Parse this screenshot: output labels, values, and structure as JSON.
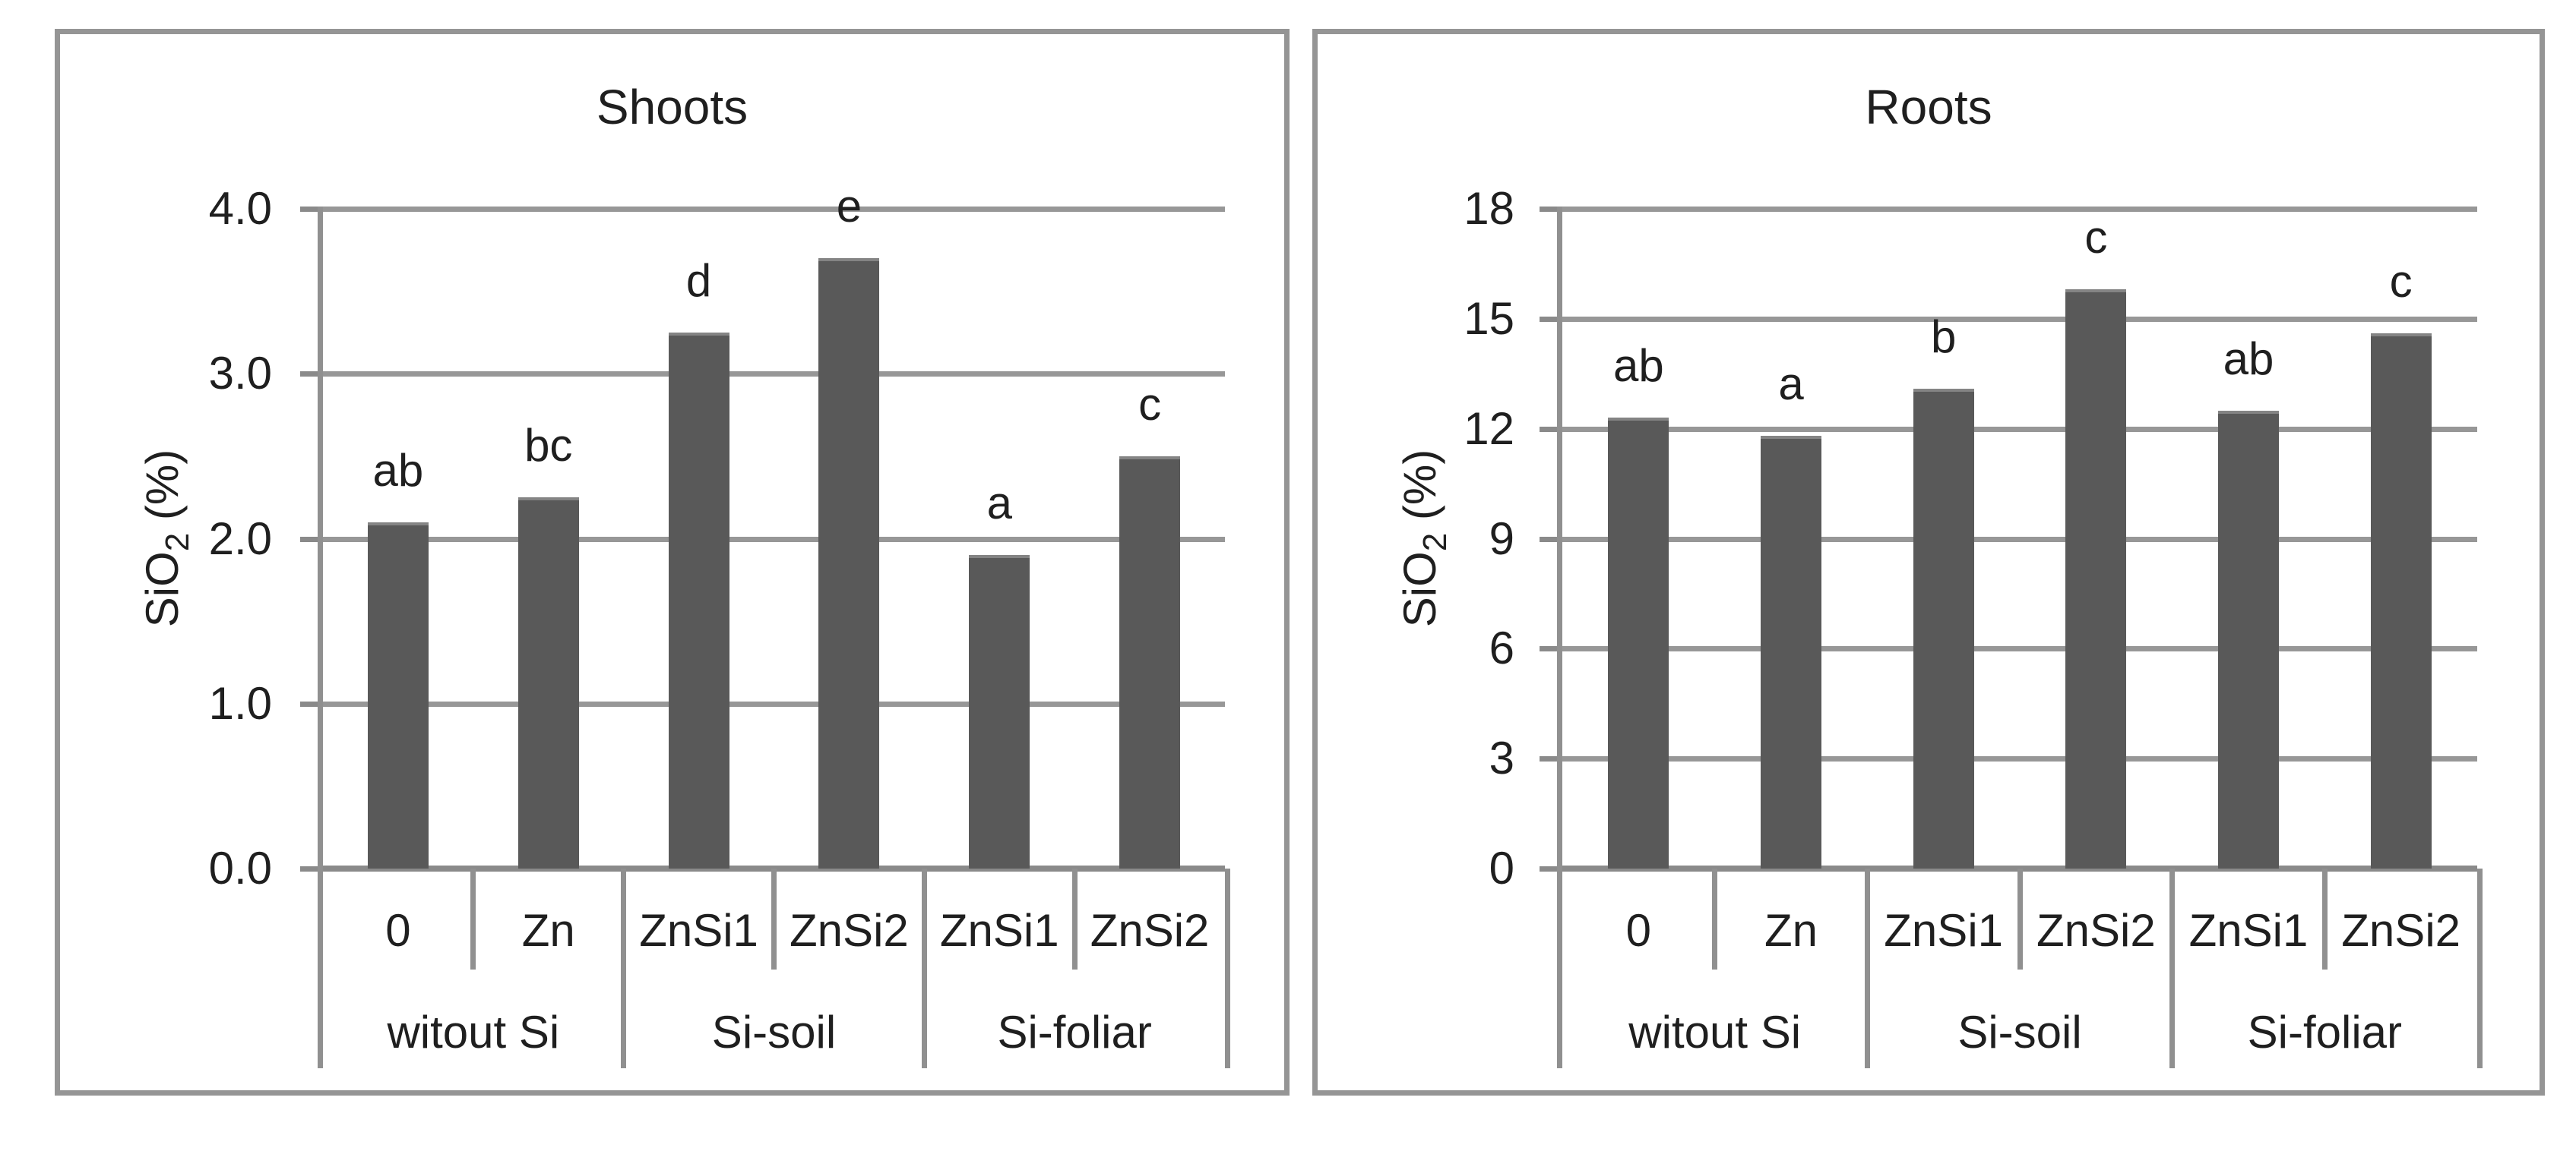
{
  "figure": {
    "description_left_panel": "Shoots",
    "description_right_panel": "Roots"
  },
  "colors": {
    "bar_fill": "#595959",
    "bar_top_edge": "#848484",
    "gridline": "#979797",
    "axis_line": "#8a8a8a",
    "panel_border": "#959595",
    "text": "#1f1f1f",
    "background": "#ffffff"
  },
  "chart_data": [
    {
      "type": "bar",
      "title": "Shoots",
      "ylabel": "SiO2 (%)",
      "ylabel_parts": {
        "base": "SiO",
        "subscript": "2",
        "suffix": " (%)"
      },
      "ylim": [
        0,
        4
      ],
      "ytick_step": 1,
      "ytick_labels": [
        "0.0",
        "1.0",
        "2.0",
        "3.0",
        "4.0"
      ],
      "grid": true,
      "legend": "none",
      "categories": [
        "0",
        "Zn",
        "ZnSi1",
        "ZnSi2",
        "ZnSi1",
        "ZnSi2"
      ],
      "group_labels": [
        {
          "label": "witout Si",
          "span": 2
        },
        {
          "label": "Si-soil",
          "span": 2
        },
        {
          "label": "Si-foliar",
          "span": 2
        }
      ],
      "values": [
        2.1,
        2.25,
        3.25,
        3.7,
        1.9,
        2.5
      ],
      "sig_letters": [
        "ab",
        "bc",
        "d",
        "e",
        "a",
        "c"
      ]
    },
    {
      "type": "bar",
      "title": "Roots",
      "ylabel": "SiO2 (%)",
      "ylabel_parts": {
        "base": "SiO",
        "subscript": "2",
        "suffix": " (%)"
      },
      "ylim": [
        0,
        18
      ],
      "ytick_step": 3,
      "ytick_labels": [
        "0",
        "3",
        "6",
        "9",
        "12",
        "15",
        "18"
      ],
      "grid": true,
      "legend": "none",
      "categories": [
        "0",
        "Zn",
        "ZnSi1",
        "ZnSi2",
        "ZnSi1",
        "ZnSi2"
      ],
      "group_labels": [
        {
          "label": "witout Si",
          "span": 2
        },
        {
          "label": "Si-soil",
          "span": 2
        },
        {
          "label": "Si-foliar",
          "span": 2
        }
      ],
      "values": [
        12.3,
        11.8,
        13.1,
        15.8,
        12.5,
        14.6
      ],
      "sig_letters": [
        "ab",
        "a",
        "b",
        "c",
        "ab",
        "c"
      ]
    }
  ]
}
